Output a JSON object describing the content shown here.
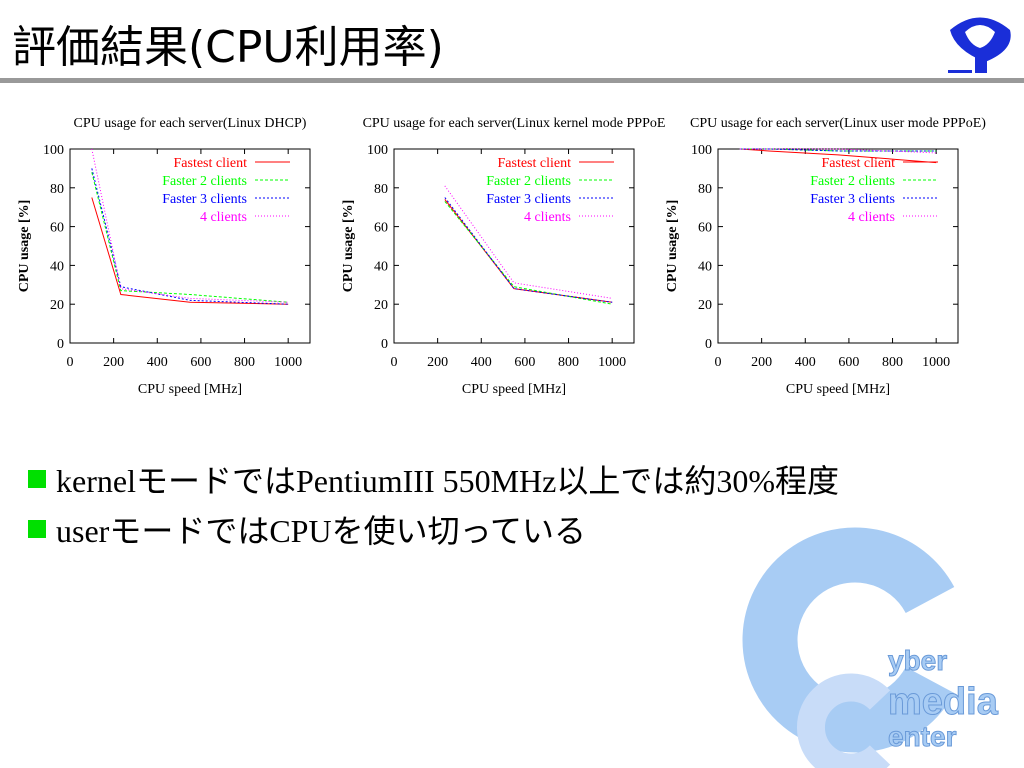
{
  "slide": {
    "title": "評価結果(CPU利用率)",
    "bullets": [
      "kernelモードではPentiumIII 550MHz以上では約30%程度",
      "userモードではCPUを使い切っている"
    ],
    "logo_text": [
      "yber",
      "media",
      "enter"
    ]
  },
  "chart_data": [
    {
      "type": "line",
      "title": "CPU usage for each server(Linux DHCP)",
      "x_label": "CPU speed [MHz]",
      "y_label": "CPU usage [%]",
      "x": [
        100,
        233,
        550,
        1000
      ],
      "xlim": [
        0,
        1100
      ],
      "xticks": [
        0,
        200,
        400,
        600,
        800,
        1000
      ],
      "ylim": [
        0,
        100
      ],
      "yticks": [
        0,
        20,
        40,
        60,
        80,
        100
      ],
      "legend": "upper right",
      "series": [
        {
          "name": "Fastest client",
          "color": "#ff0000",
          "values": [
            75,
            25,
            21,
            20
          ]
        },
        {
          "name": "Faster 2 clients",
          "color": "#00ff00",
          "values": [
            88,
            27,
            25,
            21
          ]
        },
        {
          "name": "Faster 3 clients",
          "color": "#0000ff",
          "values": [
            90,
            29,
            22,
            20
          ]
        },
        {
          "name": "4 clients",
          "color": "#ff00ff",
          "values": [
            100,
            28,
            23,
            21
          ]
        }
      ]
    },
    {
      "type": "line",
      "title": "CPU usage for each server(Linux kernel mode PPPoE",
      "x_label": "CPU speed [MHz]",
      "y_label": "CPU usage [%]",
      "x": [
        233,
        550,
        1000
      ],
      "xlim": [
        0,
        1100
      ],
      "xticks": [
        0,
        200,
        400,
        600,
        800,
        1000
      ],
      "ylim": [
        0,
        100
      ],
      "yticks": [
        0,
        20,
        40,
        60,
        80,
        100
      ],
      "legend": "upper right",
      "series": [
        {
          "name": "Fastest client",
          "color": "#ff0000",
          "values": [
            74,
            28,
            21
          ]
        },
        {
          "name": "Faster 2 clients",
          "color": "#00ff00",
          "values": [
            73,
            29,
            20
          ]
        },
        {
          "name": "Faster 3 clients",
          "color": "#0000ff",
          "values": [
            75,
            28,
            21
          ]
        },
        {
          "name": "4 clients",
          "color": "#ff00ff",
          "values": [
            81,
            31,
            23
          ]
        }
      ]
    },
    {
      "type": "line",
      "title": "CPU usage for each server(Linux user mode PPPoE)",
      "x_label": "CPU speed [MHz]",
      "y_label": "CPU usage [%]",
      "x": [
        100,
        233,
        550,
        1000
      ],
      "xlim": [
        0,
        1100
      ],
      "xticks": [
        0,
        200,
        400,
        600,
        800,
        1000
      ],
      "ylim": [
        0,
        100
      ],
      "yticks": [
        0,
        20,
        40,
        60,
        80,
        100
      ],
      "legend": "upper right",
      "series": [
        {
          "name": "Fastest client",
          "color": "#ff0000",
          "values": [
            100,
            99,
            97,
            93
          ]
        },
        {
          "name": "Faster 2 clients",
          "color": "#00ff00",
          "values": [
            100,
            100,
            99,
            99
          ]
        },
        {
          "name": "Faster 3 clients",
          "color": "#0000ff",
          "values": [
            100,
            100,
            99,
            99
          ]
        },
        {
          "name": "4 clients",
          "color": "#ff00ff",
          "values": [
            100,
            100,
            100,
            98
          ]
        }
      ]
    }
  ]
}
